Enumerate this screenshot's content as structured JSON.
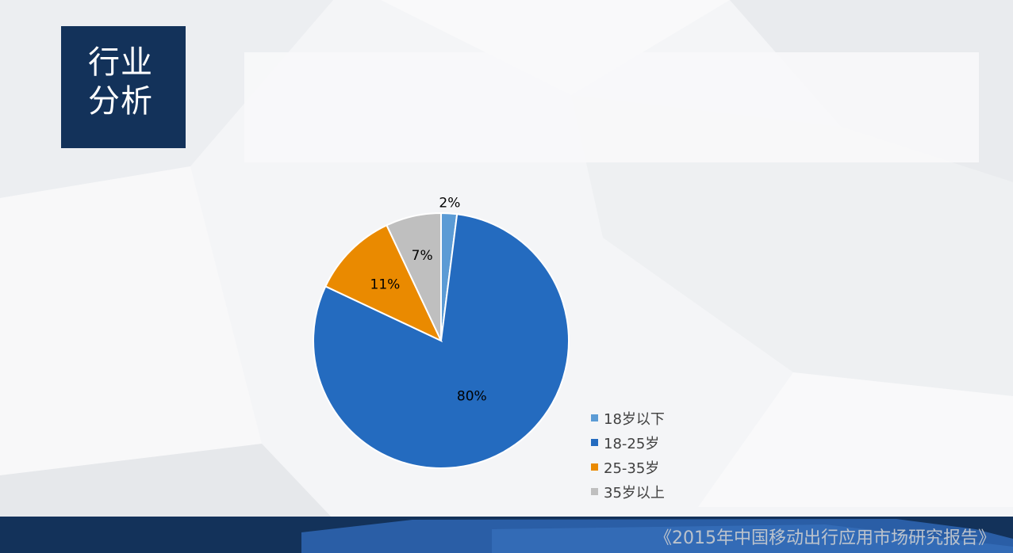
{
  "title": {
    "line1": "行业",
    "line2": "分析"
  },
  "footer": {
    "text": "《2015年中国移动出行应用市场研究报告》"
  },
  "colors": {
    "title_bg": "#13325a",
    "footer_dark": "#13325a",
    "footer_blue": "#2a5ea6"
  },
  "chart_data": {
    "type": "pie",
    "title": "",
    "start_angle_deg": 0,
    "direction": "clockwise",
    "slices": [
      {
        "label": "18岁以下",
        "value": 2,
        "display": "2%",
        "color": "#5b9bd5"
      },
      {
        "label": "18-25岁",
        "value": 80,
        "display": "80%",
        "color": "#246bbf"
      },
      {
        "label": "25-35岁",
        "value": 11,
        "display": "11%",
        "color": "#ea8a00"
      },
      {
        "label": "35岁以上",
        "value": 7,
        "display": "7%",
        "color": "#bfbfbf"
      }
    ],
    "legend_position": "bottom-right",
    "data_labels": true
  }
}
